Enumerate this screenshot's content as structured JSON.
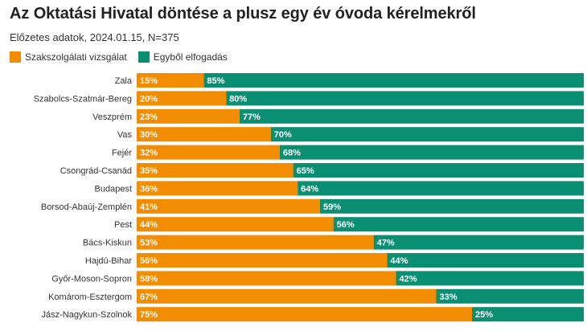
{
  "chart_data": {
    "type": "bar",
    "orientation": "horizontal",
    "stacked": "percent",
    "title": "Az Oktatási Hivatal döntése a plusz egy év óvoda kérelmekről",
    "subtitle": "Előzetes adatok, 2024.01.15, N=375",
    "categories": [
      "Zala",
      "Szabolcs-Szatmár-Bereg",
      "Veszprém",
      "Vas",
      "Fejér",
      "Csongrád-Csanád",
      "Budapest",
      "Borsod-Abaúj-Zemplén",
      "Pest",
      "Bács-Kiskun",
      "Hajdú-Bihar",
      "Győr-Moson-Sopron",
      "Komárom-Esztergom",
      "Jász-Nagykun-Szolnok"
    ],
    "series": [
      {
        "name": "Szakszolgálati vizsgálat",
        "color": "#f28c00",
        "values": [
          15,
          20,
          23,
          30,
          32,
          35,
          36,
          41,
          44,
          53,
          56,
          58,
          67,
          75
        ]
      },
      {
        "name": "Egyből elfogadás",
        "color": "#0b8f73",
        "values": [
          85,
          80,
          77,
          70,
          68,
          65,
          64,
          59,
          56,
          47,
          44,
          42,
          33,
          25
        ]
      }
    ],
    "value_suffix": "%",
    "xlim": [
      0,
      100
    ],
    "legend": "top-left"
  }
}
